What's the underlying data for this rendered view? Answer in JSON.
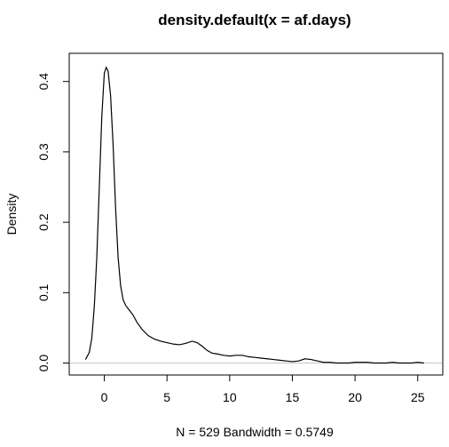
{
  "chart_data": {
    "type": "line",
    "title": "density.default(x = af.days)",
    "xlabel": "N = 529   Bandwidth = 0.5749",
    "ylabel": "Density",
    "xlim": [
      -2.8,
      27.0
    ],
    "ylim": [
      -0.017,
      0.44
    ],
    "x_ticks": [
      0,
      5,
      10,
      15,
      20,
      25
    ],
    "x_tick_labels": [
      "0",
      "5",
      "10",
      "15",
      "20",
      "25"
    ],
    "y_ticks": [
      0.0,
      0.1,
      0.2,
      0.3,
      0.4
    ],
    "y_tick_labels": [
      "0.0",
      "0.1",
      "0.2",
      "0.3",
      "0.4"
    ],
    "baseline": 0,
    "baseline_color": "#c8c8c8",
    "grid": false,
    "series": [
      {
        "x": [
          -1.5,
          -1.2,
          -1.0,
          -0.8,
          -0.6,
          -0.4,
          -0.2,
          0.0,
          0.15,
          0.3,
          0.5,
          0.7,
          0.9,
          1.1,
          1.3,
          1.5,
          1.7,
          2.0,
          2.3,
          2.6,
          3.0,
          3.5,
          4.0,
          4.5,
          5.0,
          5.5,
          6.0,
          6.5,
          7.0,
          7.4,
          7.8,
          8.2,
          8.6,
          9.0,
          9.5,
          10.0,
          10.5,
          11.0,
          11.5,
          12.0,
          12.5,
          13.0,
          13.5,
          14.0,
          14.5,
          15.0,
          15.5,
          16.0,
          16.5,
          17.0,
          17.5,
          18.0,
          18.5,
          19.0,
          19.5,
          20.0,
          20.5,
          21.0,
          21.5,
          22.0,
          22.5,
          23.0,
          23.5,
          24.0,
          24.5,
          25.0,
          25.5
        ],
        "y": [
          0.005,
          0.015,
          0.035,
          0.08,
          0.15,
          0.25,
          0.35,
          0.412,
          0.42,
          0.415,
          0.38,
          0.31,
          0.22,
          0.15,
          0.11,
          0.09,
          0.082,
          0.075,
          0.068,
          0.058,
          0.048,
          0.039,
          0.034,
          0.031,
          0.029,
          0.027,
          0.026,
          0.028,
          0.031,
          0.029,
          0.024,
          0.018,
          0.014,
          0.013,
          0.011,
          0.01,
          0.011,
          0.011,
          0.009,
          0.008,
          0.007,
          0.006,
          0.005,
          0.004,
          0.003,
          0.002,
          0.003,
          0.006,
          0.005,
          0.003,
          0.001,
          0.001,
          0.0,
          0.0,
          0.0,
          0.001,
          0.001,
          0.001,
          0.0,
          0.0,
          0.0,
          0.001,
          0.0,
          0.0,
          0.0,
          0.001,
          0.0
        ]
      }
    ]
  }
}
